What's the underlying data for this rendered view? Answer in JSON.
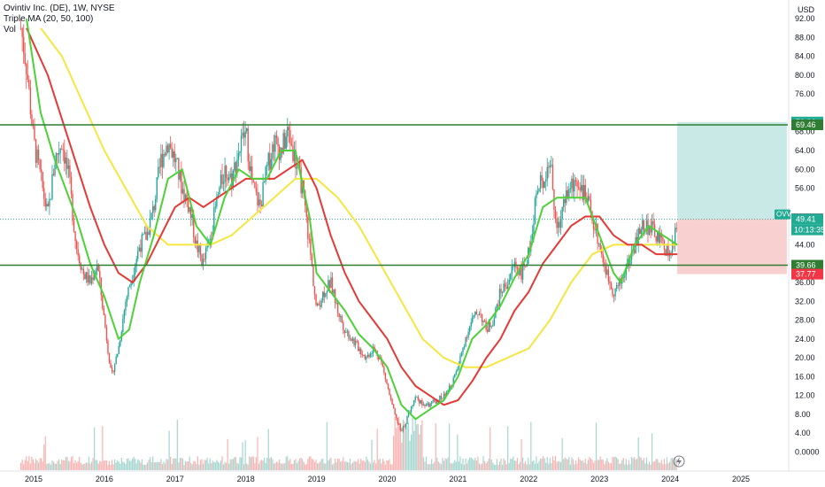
{
  "legend": {
    "title": "Ovintiv Inc. (DE), 1W, NYSE",
    "indicator": "Triple MA (20, 50, 100)",
    "volume": "Vol"
  },
  "currency": "USD",
  "symbol_tag": "OVV",
  "countdown": "10:13:35",
  "colors": {
    "up": "#26a69a",
    "down": "#ef5350",
    "ma20": "#4cd137",
    "ma50": "#e53935",
    "ma100": "#f5e642",
    "hline": "#2e7d32",
    "profit_zone": "#b2dfdb",
    "loss_zone": "#f8c4c4"
  },
  "chart_data": {
    "type": "candlestick",
    "title": "Ovintiv Inc. (DE), 1W, NYSE",
    "y_ticks": [
      "92.00",
      "88.00",
      "84.00",
      "80.00",
      "76.00",
      "68.00",
      "64.00",
      "60.00",
      "56.00",
      "44.00",
      "36.00",
      "32.00",
      "28.00",
      "24.00",
      "20.00",
      "16.00",
      "12.00",
      "8.00",
      "4.00",
      "0.0000"
    ],
    "x_ticks": [
      "2015",
      "2016",
      "2017",
      "2018",
      "2019",
      "2020",
      "2021",
      "2022",
      "2023",
      "2024",
      "2025"
    ],
    "price_path": [
      [
        2014.8,
        92
      ],
      [
        2014.9,
        82
      ],
      [
        2015.0,
        66
      ],
      [
        2015.1,
        58
      ],
      [
        2015.2,
        50
      ],
      [
        2015.3,
        62
      ],
      [
        2015.4,
        66
      ],
      [
        2015.5,
        58
      ],
      [
        2015.6,
        44
      ],
      [
        2015.7,
        38
      ],
      [
        2015.8,
        36
      ],
      [
        2015.9,
        40
      ],
      [
        2016.0,
        28
      ],
      [
        2016.1,
        16
      ],
      [
        2016.2,
        22
      ],
      [
        2016.3,
        32
      ],
      [
        2016.4,
        38
      ],
      [
        2016.5,
        44
      ],
      [
        2016.6,
        46
      ],
      [
        2016.7,
        52
      ],
      [
        2016.8,
        62
      ],
      [
        2016.9,
        66
      ],
      [
        2017.0,
        62
      ],
      [
        2017.1,
        56
      ],
      [
        2017.2,
        52
      ],
      [
        2017.3,
        44
      ],
      [
        2017.4,
        40
      ],
      [
        2017.5,
        46
      ],
      [
        2017.6,
        54
      ],
      [
        2017.7,
        60
      ],
      [
        2017.8,
        58
      ],
      [
        2017.9,
        64
      ],
      [
        2018.0,
        68
      ],
      [
        2018.1,
        56
      ],
      [
        2018.2,
        52
      ],
      [
        2018.3,
        60
      ],
      [
        2018.4,
        66
      ],
      [
        2018.5,
        64
      ],
      [
        2018.6,
        68
      ],
      [
        2018.7,
        62
      ],
      [
        2018.8,
        56
      ],
      [
        2018.9,
        44
      ],
      [
        2019.0,
        30
      ],
      [
        2019.1,
        34
      ],
      [
        2019.2,
        36
      ],
      [
        2019.3,
        30
      ],
      [
        2019.4,
        26
      ],
      [
        2019.5,
        24
      ],
      [
        2019.6,
        22
      ],
      [
        2019.7,
        20
      ],
      [
        2019.8,
        22
      ],
      [
        2019.9,
        20
      ],
      [
        2020.0,
        14
      ],
      [
        2020.1,
        8
      ],
      [
        2020.2,
        4
      ],
      [
        2020.3,
        8
      ],
      [
        2020.4,
        12
      ],
      [
        2020.5,
        10
      ],
      [
        2020.6,
        10
      ],
      [
        2020.7,
        11
      ],
      [
        2020.8,
        12
      ],
      [
        2020.9,
        14
      ],
      [
        2021.0,
        18
      ],
      [
        2021.1,
        24
      ],
      [
        2021.2,
        28
      ],
      [
        2021.3,
        30
      ],
      [
        2021.4,
        26
      ],
      [
        2021.5,
        28
      ],
      [
        2021.6,
        34
      ],
      [
        2021.7,
        36
      ],
      [
        2021.8,
        40
      ],
      [
        2021.9,
        38
      ],
      [
        2022.0,
        42
      ],
      [
        2022.1,
        54
      ],
      [
        2022.2,
        58
      ],
      [
        2022.3,
        62
      ],
      [
        2022.4,
        46
      ],
      [
        2022.5,
        54
      ],
      [
        2022.6,
        56
      ],
      [
        2022.7,
        58
      ],
      [
        2022.8,
        54
      ],
      [
        2022.9,
        50
      ],
      [
        2023.0,
        44
      ],
      [
        2023.1,
        38
      ],
      [
        2023.2,
        34
      ],
      [
        2023.3,
        36
      ],
      [
        2023.4,
        40
      ],
      [
        2023.5,
        44
      ],
      [
        2023.6,
        48
      ],
      [
        2023.7,
        48
      ],
      [
        2023.8,
        46
      ],
      [
        2023.9,
        44
      ],
      [
        2024.0,
        42
      ],
      [
        2024.05,
        44
      ],
      [
        2024.1,
        49.41
      ]
    ],
    "ma20_path": [
      [
        2014.9,
        92
      ],
      [
        2015.1,
        72
      ],
      [
        2015.3,
        62
      ],
      [
        2015.6,
        50
      ],
      [
        2015.8,
        40
      ],
      [
        2016.0,
        33
      ],
      [
        2016.2,
        24
      ],
      [
        2016.35,
        26
      ],
      [
        2016.5,
        36
      ],
      [
        2016.7,
        46
      ],
      [
        2016.9,
        58
      ],
      [
        2017.1,
        60
      ],
      [
        2017.3,
        48
      ],
      [
        2017.5,
        44
      ],
      [
        2017.7,
        54
      ],
      [
        2017.9,
        60
      ],
      [
        2018.1,
        58
      ],
      [
        2018.3,
        58
      ],
      [
        2018.5,
        64
      ],
      [
        2018.7,
        64
      ],
      [
        2018.9,
        50
      ],
      [
        2019.0,
        38
      ],
      [
        2019.2,
        34
      ],
      [
        2019.4,
        30
      ],
      [
        2019.6,
        25
      ],
      [
        2019.8,
        22
      ],
      [
        2020.0,
        18
      ],
      [
        2020.2,
        10
      ],
      [
        2020.4,
        7
      ],
      [
        2020.6,
        9
      ],
      [
        2020.8,
        11
      ],
      [
        2021.0,
        16
      ],
      [
        2021.2,
        24
      ],
      [
        2021.4,
        27
      ],
      [
        2021.6,
        31
      ],
      [
        2021.8,
        37
      ],
      [
        2022.0,
        42
      ],
      [
        2022.2,
        52
      ],
      [
        2022.4,
        54
      ],
      [
        2022.6,
        54
      ],
      [
        2022.8,
        54
      ],
      [
        2023.0,
        46
      ],
      [
        2023.2,
        38
      ],
      [
        2023.3,
        36
      ],
      [
        2023.5,
        44
      ],
      [
        2023.7,
        48
      ],
      [
        2023.9,
        46
      ],
      [
        2024.1,
        44
      ]
    ],
    "ma50_path": [
      [
        2014.9,
        90
      ],
      [
        2015.2,
        80
      ],
      [
        2015.5,
        66
      ],
      [
        2015.8,
        52
      ],
      [
        2016.0,
        44
      ],
      [
        2016.2,
        38
      ],
      [
        2016.4,
        36
      ],
      [
        2016.6,
        40
      ],
      [
        2016.8,
        46
      ],
      [
        2017.0,
        52
      ],
      [
        2017.2,
        54
      ],
      [
        2017.4,
        52
      ],
      [
        2017.6,
        54
      ],
      [
        2017.8,
        56
      ],
      [
        2018.0,
        58
      ],
      [
        2018.2,
        58
      ],
      [
        2018.4,
        58
      ],
      [
        2018.6,
        60
      ],
      [
        2018.8,
        62
      ],
      [
        2019.0,
        56
      ],
      [
        2019.2,
        46
      ],
      [
        2019.4,
        38
      ],
      [
        2019.6,
        32
      ],
      [
        2019.8,
        28
      ],
      [
        2020.0,
        24
      ],
      [
        2020.2,
        18
      ],
      [
        2020.4,
        14
      ],
      [
        2020.6,
        12
      ],
      [
        2020.8,
        10
      ],
      [
        2021.0,
        11
      ],
      [
        2021.2,
        15
      ],
      [
        2021.4,
        20
      ],
      [
        2021.6,
        24
      ],
      [
        2021.8,
        30
      ],
      [
        2022.0,
        34
      ],
      [
        2022.2,
        40
      ],
      [
        2022.4,
        44
      ],
      [
        2022.6,
        48
      ],
      [
        2022.8,
        50
      ],
      [
        2023.0,
        50
      ],
      [
        2023.2,
        46
      ],
      [
        2023.4,
        44
      ],
      [
        2023.6,
        44
      ],
      [
        2023.8,
        42
      ],
      [
        2024.0,
        42
      ],
      [
        2024.1,
        42
      ]
    ],
    "ma100_path": [
      [
        2015.1,
        90
      ],
      [
        2015.4,
        84
      ],
      [
        2015.7,
        74
      ],
      [
        2016.0,
        64
      ],
      [
        2016.3,
        56
      ],
      [
        2016.6,
        48
      ],
      [
        2016.9,
        44
      ],
      [
        2017.2,
        44
      ],
      [
        2017.5,
        44
      ],
      [
        2017.8,
        46
      ],
      [
        2018.1,
        50
      ],
      [
        2018.4,
        54
      ],
      [
        2018.7,
        58
      ],
      [
        2019.0,
        58
      ],
      [
        2019.3,
        54
      ],
      [
        2019.6,
        48
      ],
      [
        2019.9,
        40
      ],
      [
        2020.2,
        32
      ],
      [
        2020.5,
        24
      ],
      [
        2020.8,
        20
      ],
      [
        2021.1,
        18
      ],
      [
        2021.4,
        18
      ],
      [
        2021.7,
        20
      ],
      [
        2022.0,
        22
      ],
      [
        2022.3,
        28
      ],
      [
        2022.6,
        36
      ],
      [
        2022.9,
        42
      ],
      [
        2023.2,
        44
      ],
      [
        2023.5,
        44
      ],
      [
        2023.8,
        44
      ],
      [
        2024.1,
        44
      ]
    ],
    "horizontal_levels": [
      69.46,
      39.66
    ],
    "position": {
      "entry": 49.51,
      "target": 70.06,
      "stop": 37.77,
      "x_start": 2024.1,
      "x_end": 2025.65
    },
    "price_tags": [
      {
        "value": 70.06,
        "label": "70.06",
        "color": "#22ab94"
      },
      {
        "value": 69.46,
        "label": "69.46",
        "color": "#2e7d32"
      },
      {
        "value": 49.51,
        "label": "49.51",
        "color": "#5d606b"
      },
      {
        "value": 49.41,
        "label": "49.41",
        "color": "#22ab94"
      },
      {
        "value": 39.66,
        "label": "39.66",
        "color": "#2e7d32"
      },
      {
        "value": 37.77,
        "label": "37.77",
        "color": "#f23645"
      }
    ],
    "last_price": 49.41
  }
}
